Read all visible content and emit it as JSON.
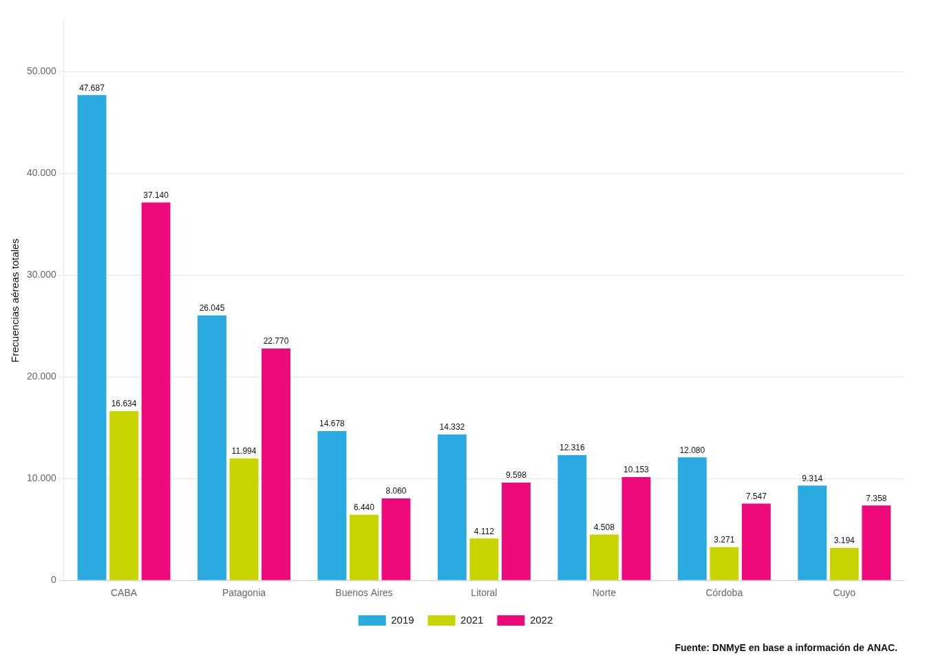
{
  "chart_data": {
    "type": "bar",
    "categories": [
      "CABA",
      "Patagonia",
      "Buenos Aires",
      "Litoral",
      "Norte",
      "Córdoba",
      "Cuyo"
    ],
    "series": [
      {
        "name": "2019",
        "color": "#29ABE2",
        "values": [
          47687,
          26045,
          14678,
          14332,
          12316,
          12080,
          9314
        ],
        "value_labels": [
          "47.687",
          "26.045",
          "14.678",
          "14.332",
          "12.316",
          "12.080",
          "9.314"
        ]
      },
      {
        "name": "2021",
        "color": "#C8D400",
        "values": [
          16634,
          11994,
          6440,
          4112,
          4508,
          3271,
          3194
        ],
        "value_labels": [
          "16.634",
          "11.994",
          "6.440",
          "4.112",
          "4.508",
          "3.271",
          "3.194"
        ]
      },
      {
        "name": "2022",
        "color": "#F0097A",
        "values": [
          37140,
          22770,
          8060,
          9598,
          10153,
          7547,
          7358
        ],
        "value_labels": [
          "37.140",
          "22.770",
          "8.060",
          "9.598",
          "10.153",
          "7.547",
          "7.358"
        ]
      }
    ],
    "ylabel": "Frecuencias aéreas totales",
    "ylim": [
      0,
      55000
    ],
    "yticks": [
      0,
      {
        "value": 10000,
        "label": "10.000"
      },
      {
        "value": 20000,
        "label": "20.000"
      },
      {
        "value": 30000,
        "label": "30.000"
      },
      {
        "value": 40000,
        "label": "40.000"
      },
      {
        "value": 50000,
        "label": "50.000"
      }
    ],
    "grid": true,
    "legend": "bottom",
    "data_labels": true,
    "annotations": [
      "Fuente: DNMyE en base a información de ANAC."
    ]
  }
}
